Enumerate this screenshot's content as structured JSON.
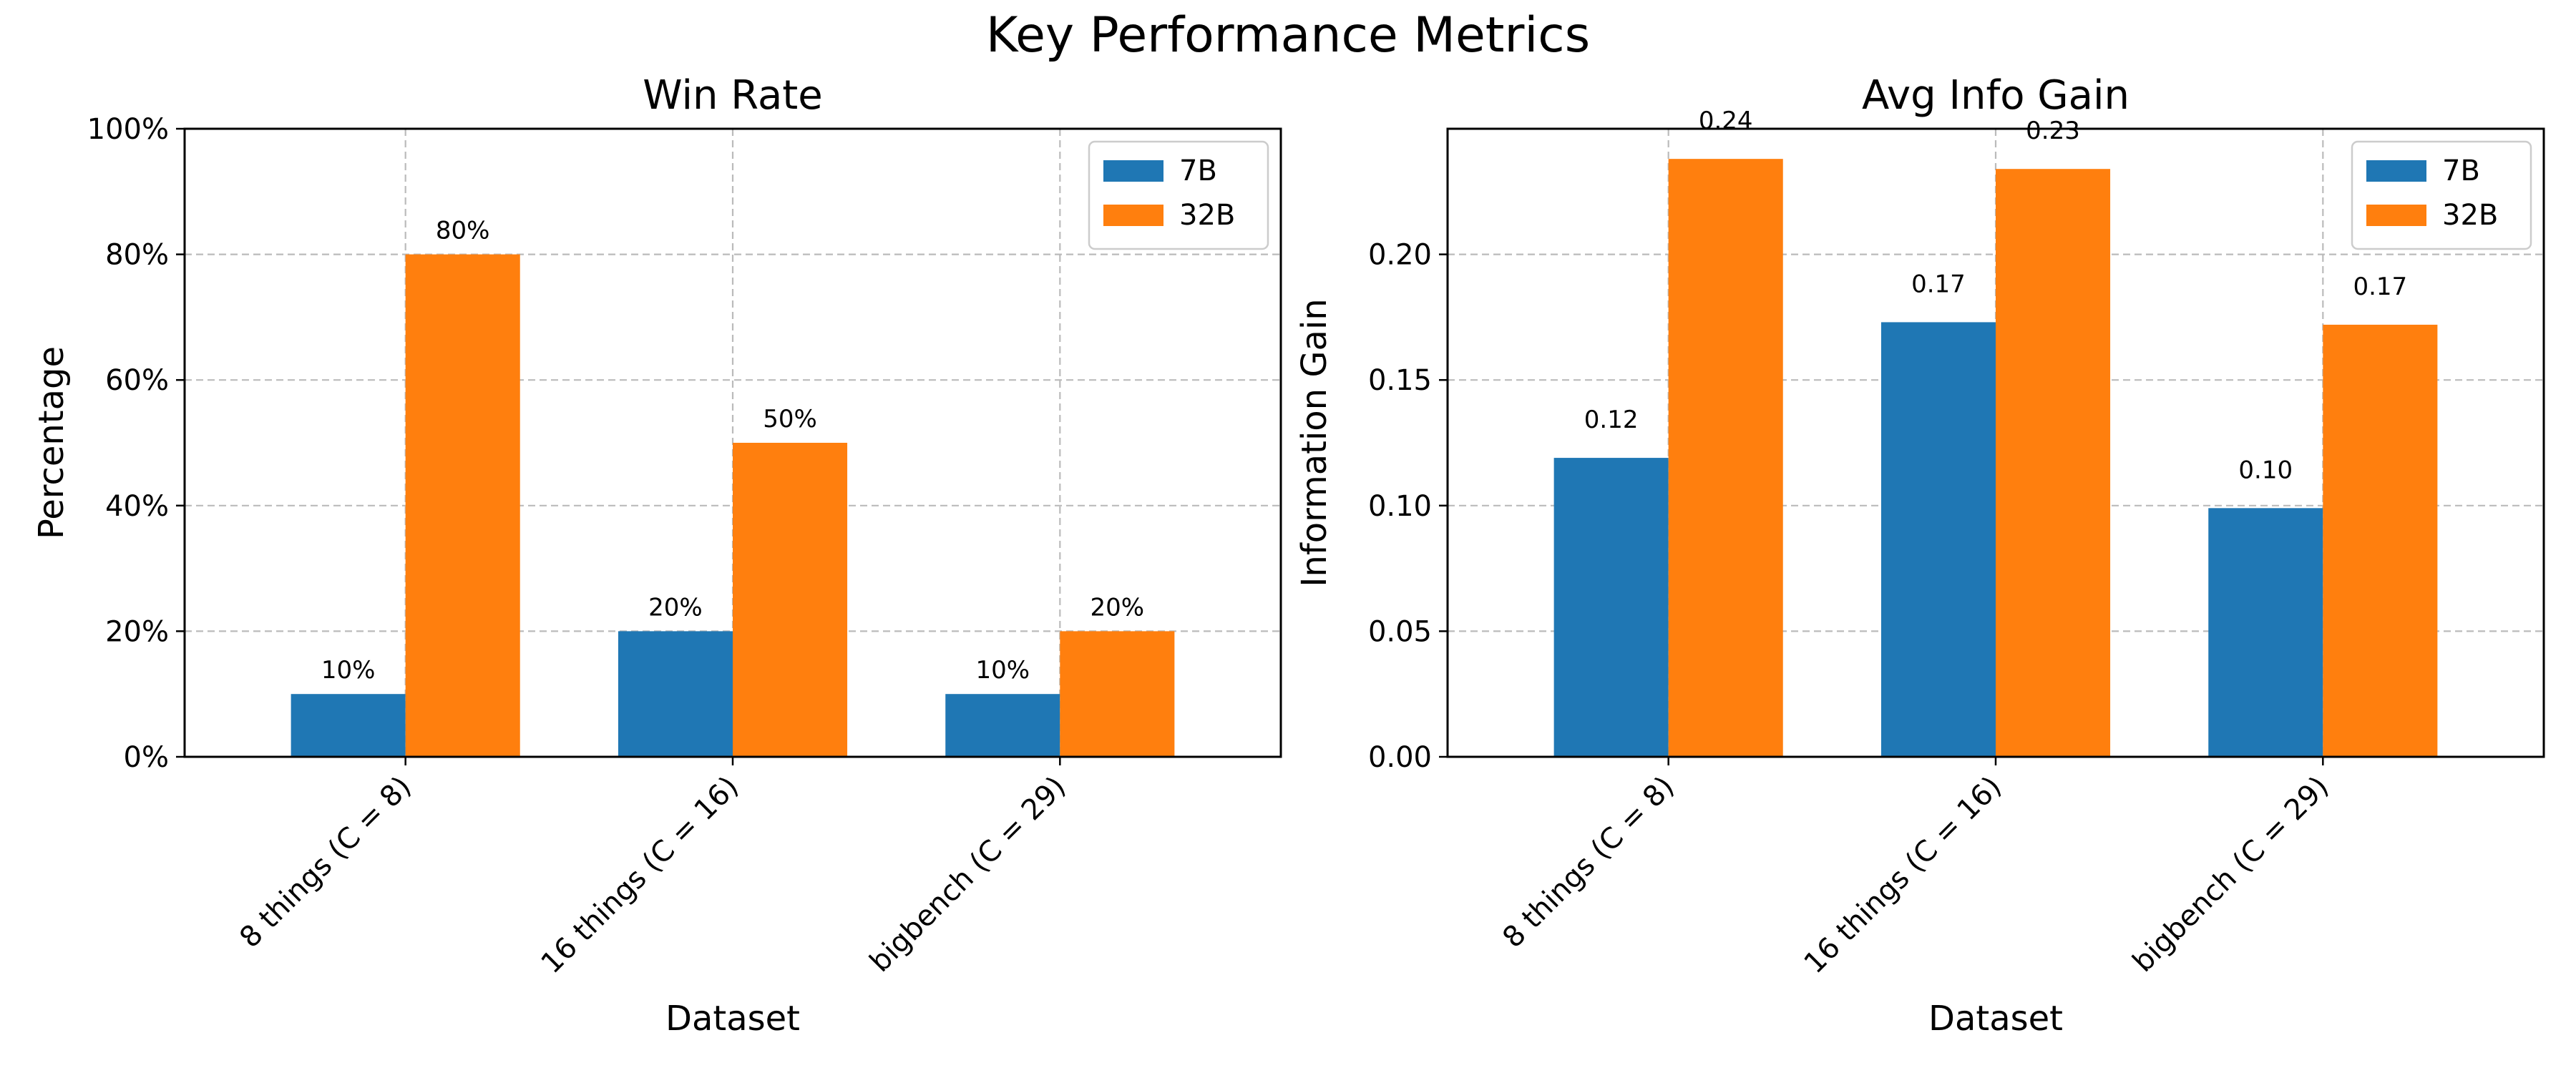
{
  "figure_title": "Key Performance Metrics",
  "colors": {
    "7B": "#1f77b4",
    "32B": "#ff7f0e",
    "grid": "#b0b0b0"
  },
  "chart_data": [
    {
      "type": "bar",
      "title": "Win Rate",
      "xlabel": "Dataset",
      "ylabel": "Percentage",
      "categories": [
        "8 things (C = 8)",
        "16 things (C = 16)",
        "bigbench (C = 29)"
      ],
      "series": [
        {
          "name": "7B",
          "values": [
            10,
            20,
            10
          ],
          "labels": [
            "10%",
            "20%",
            "10%"
          ]
        },
        {
          "name": "32B",
          "values": [
            80,
            50,
            20
          ],
          "labels": [
            "80%",
            "50%",
            "20%"
          ]
        }
      ],
      "ylim": [
        0,
        100
      ],
      "yticks": [
        0,
        20,
        40,
        60,
        80,
        100
      ],
      "ytick_labels": [
        "0%",
        "20%",
        "40%",
        "60%",
        "80%",
        "100%"
      ],
      "grid": true,
      "legend": "top-right"
    },
    {
      "type": "bar",
      "title": "Avg Info Gain",
      "xlabel": "Dataset",
      "ylabel": "Information Gain",
      "categories": [
        "8 things (C = 8)",
        "16 things (C = 16)",
        "bigbench (C = 29)"
      ],
      "series": [
        {
          "name": "7B",
          "values": [
            0.119,
            0.173,
            0.099
          ],
          "labels": [
            "0.12",
            "0.17",
            "0.10"
          ]
        },
        {
          "name": "32B",
          "values": [
            0.238,
            0.234,
            0.172
          ],
          "labels": [
            "0.24",
            "0.23",
            "0.17"
          ]
        }
      ],
      "ylim": [
        0,
        0.25
      ],
      "yticks": [
        0,
        0.05,
        0.1,
        0.15,
        0.2
      ],
      "ytick_labels": [
        "0.00",
        "0.05",
        "0.10",
        "0.15",
        "0.20"
      ],
      "grid": true,
      "legend": "top-right"
    }
  ]
}
